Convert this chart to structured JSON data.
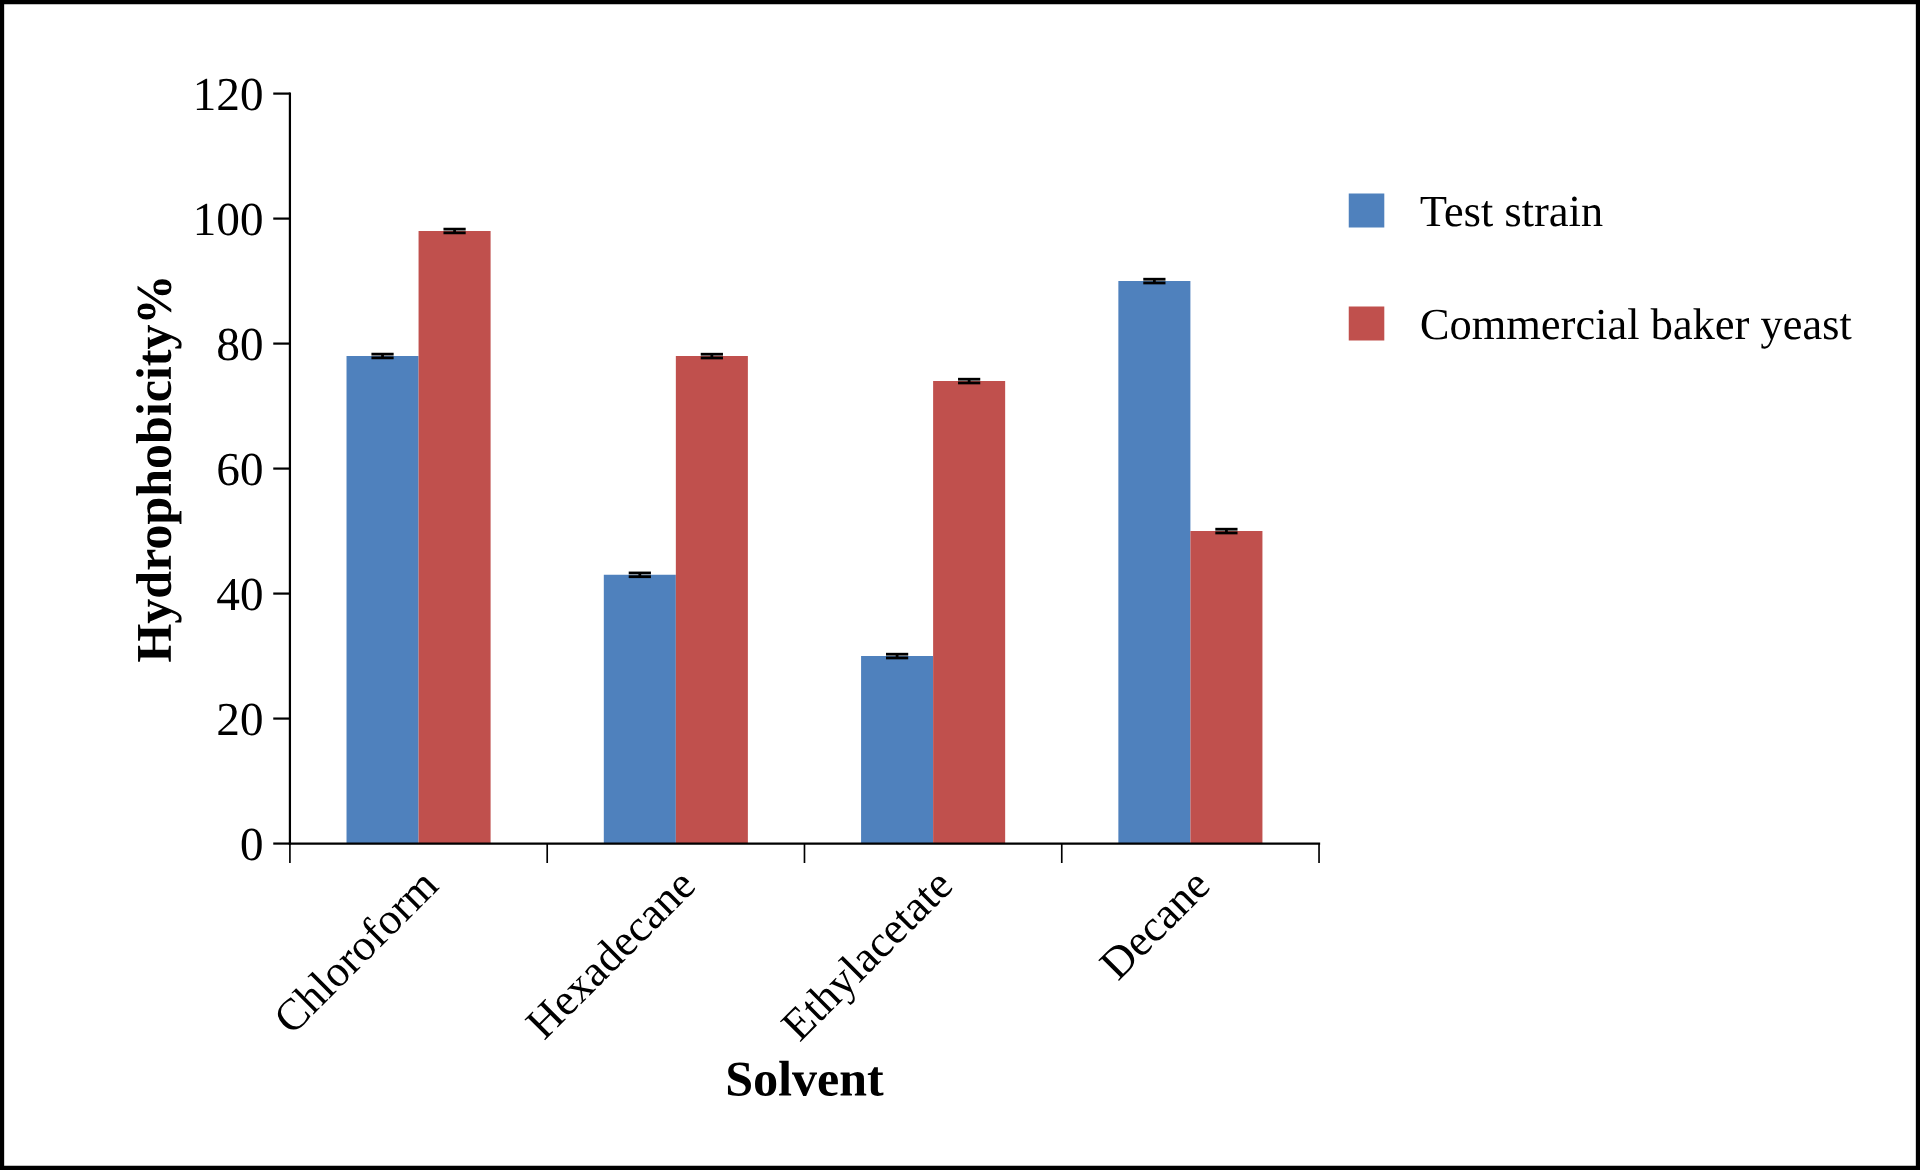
{
  "chart_data": {
    "type": "bar",
    "xlabel": "Solvent",
    "ylabel": "Hydrophobicity%",
    "categories": [
      "Chloroform",
      "Hexadecane",
      "Ethylacetate",
      "Decane"
    ],
    "series": [
      {
        "name": "Test strain",
        "color": "#4f81bd",
        "values": [
          78,
          43,
          30,
          90
        ],
        "errors": [
          0.3,
          0.3,
          0.3,
          0.3
        ]
      },
      {
        "name": "Commercial baker yeast",
        "color": "#c0504d",
        "values": [
          98,
          78,
          74,
          50
        ],
        "errors": [
          0.3,
          0.3,
          0.3,
          0.3
        ]
      }
    ],
    "ylim": [
      0,
      120
    ],
    "yticks": [
      0,
      20,
      40,
      60,
      80,
      100,
      120
    ],
    "grid": false,
    "legend": "right"
  }
}
